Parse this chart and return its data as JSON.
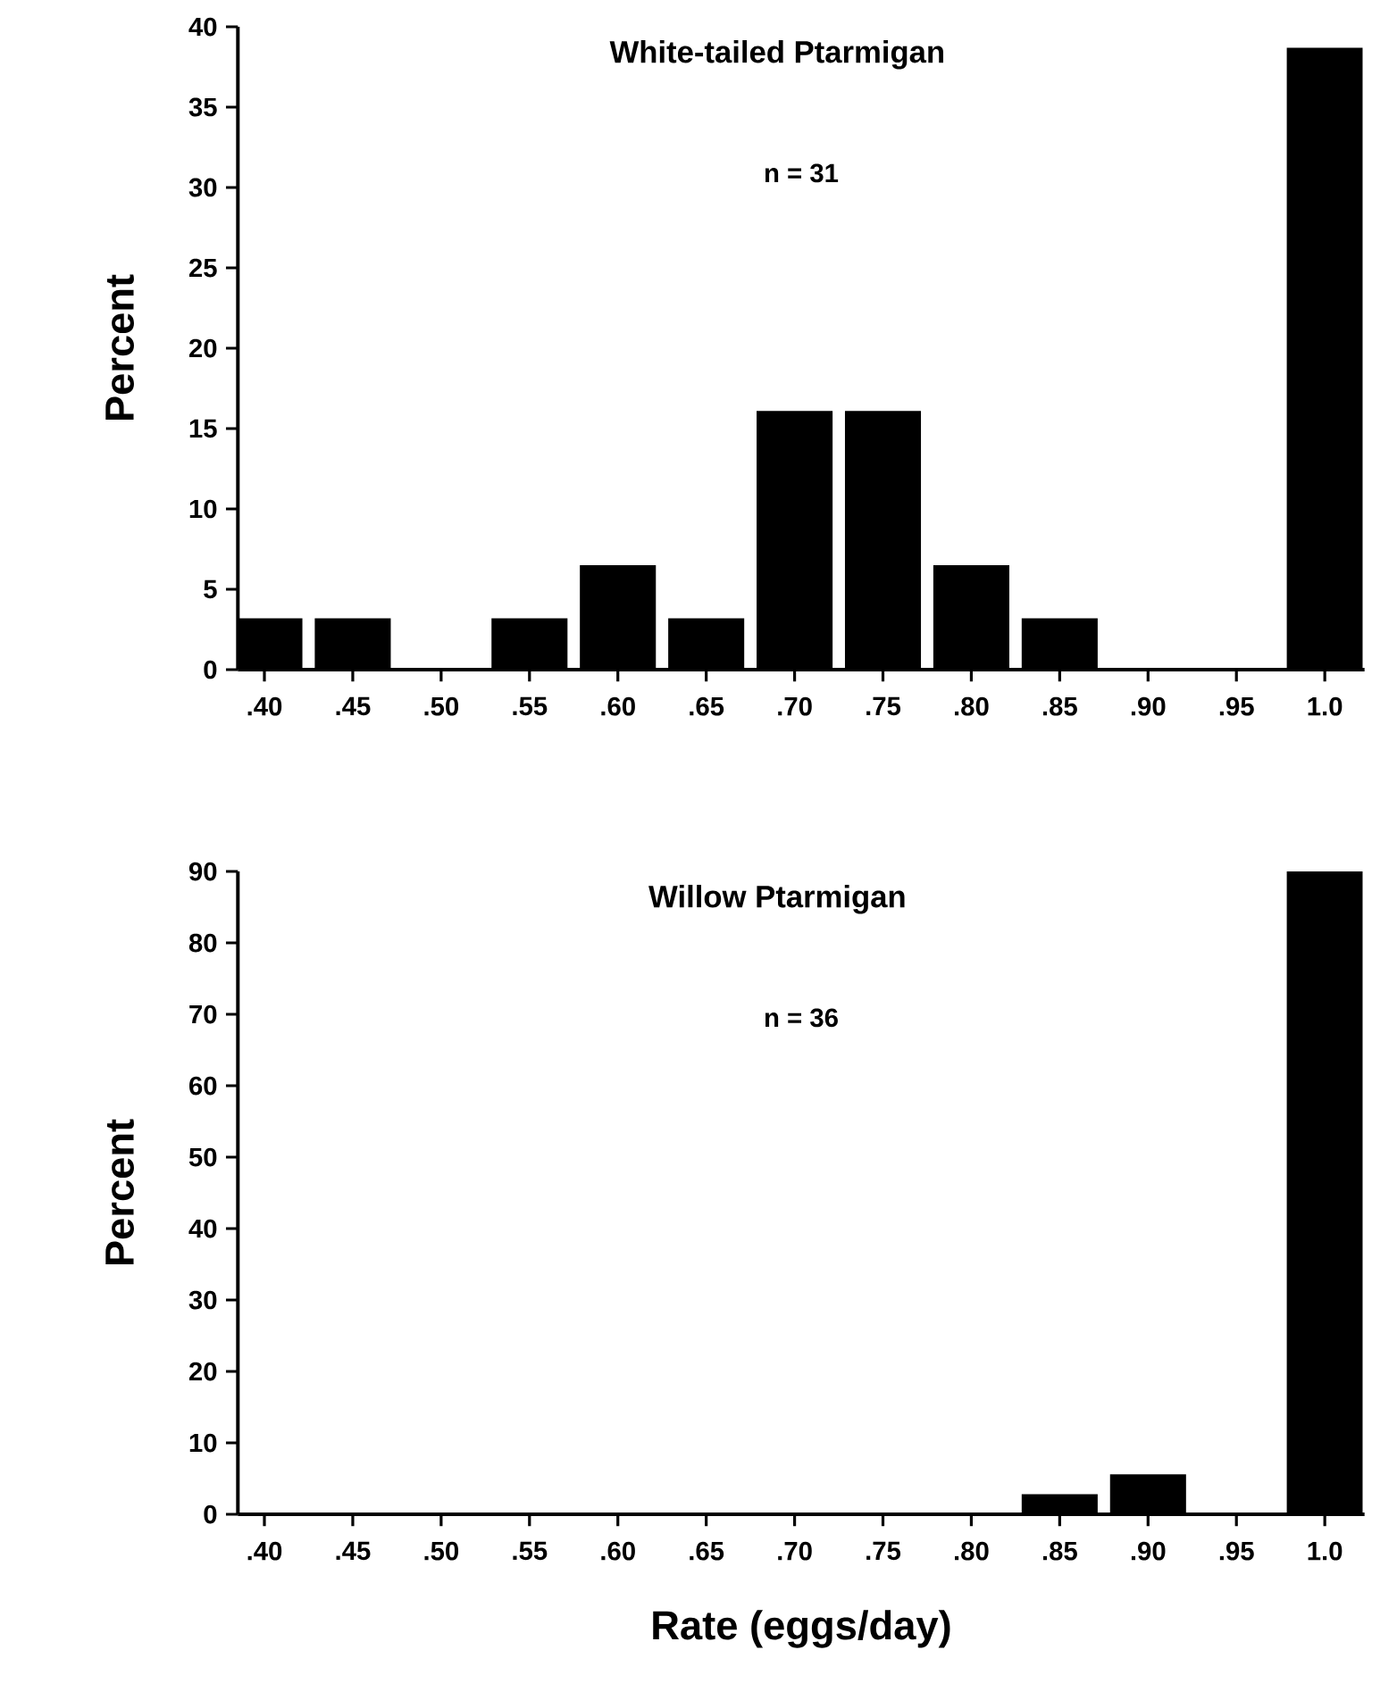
{
  "chart_data": [
    {
      "type": "bar",
      "title": "White-tailed  Ptarmigan",
      "annotations": [
        "n = 31"
      ],
      "ylabel": "Percent",
      "categories": [
        ".40",
        ".45",
        ".50",
        ".55",
        ".60",
        ".65",
        ".70",
        ".75",
        ".80",
        ".85",
        ".90",
        ".95",
        "1.0"
      ],
      "values": [
        3.2,
        3.2,
        0,
        3.2,
        6.5,
        3.2,
        16.1,
        16.1,
        6.5,
        3.2,
        0,
        0,
        38.7
      ],
      "color": "#000000",
      "ylim": [
        0,
        40
      ],
      "yticks": [
        0,
        5,
        10,
        15,
        20,
        25,
        30,
        35,
        40
      ]
    },
    {
      "type": "bar",
      "title": "Willow  Ptarmigan",
      "annotations": [
        "n = 36"
      ],
      "ylabel": "Percent",
      "xlabel": "Rate  (eggs/day)",
      "categories": [
        ".40",
        ".45",
        ".50",
        ".55",
        ".60",
        ".65",
        ".70",
        ".75",
        ".80",
        ".85",
        ".90",
        ".95",
        "1.0"
      ],
      "values": [
        0,
        0,
        0,
        0,
        0,
        0,
        0,
        0,
        0,
        2.8,
        5.6,
        0,
        90
      ],
      "color": "#000000",
      "ylim": [
        0,
        90
      ],
      "yticks": [
        0,
        10,
        20,
        30,
        40,
        50,
        60,
        70,
        80,
        90
      ]
    }
  ]
}
